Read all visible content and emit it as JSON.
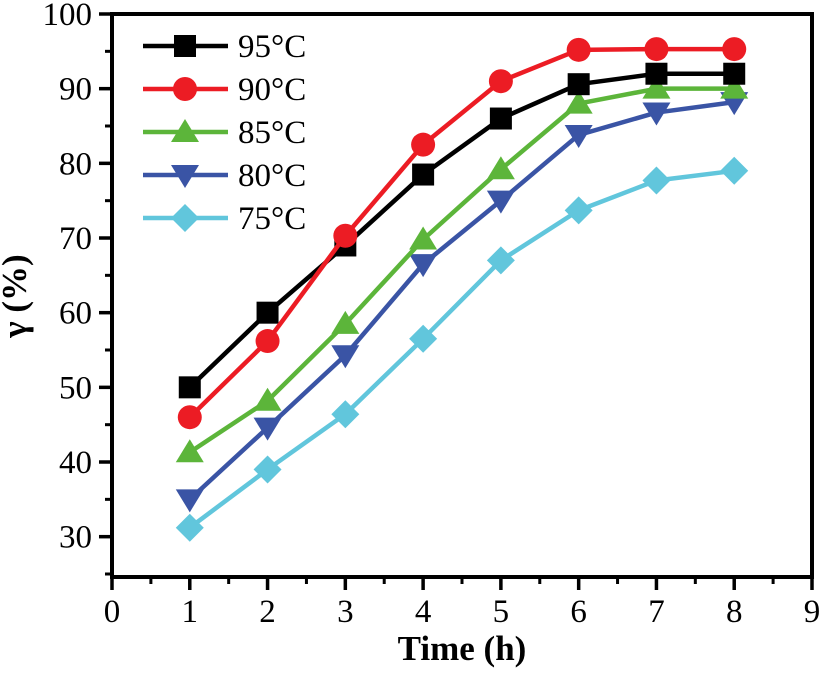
{
  "chart_data": {
    "type": "line",
    "title": "",
    "xlabel": "Time (h)",
    "ylabel": "γ (%)",
    "x": [
      1,
      2,
      3,
      4,
      5,
      6,
      7,
      8
    ],
    "xlim": [
      0,
      9
    ],
    "ylim": [
      24.6,
      100
    ],
    "x_tick_labels": [
      "0",
      "1",
      "2",
      "3",
      "4",
      "5",
      "6",
      "7",
      "8",
      "9"
    ],
    "x_tick_values": [
      0,
      1,
      2,
      3,
      4,
      5,
      6,
      7,
      8,
      9
    ],
    "x_minor_ticks": [
      0.5,
      1.5,
      2.5,
      3.5,
      4.5,
      5.5,
      6.5,
      7.5,
      8.5
    ],
    "y_tick_labels": [
      "30",
      "40",
      "50",
      "60",
      "70",
      "80",
      "90",
      "100"
    ],
    "y_tick_values": [
      30,
      40,
      50,
      60,
      70,
      80,
      90,
      100
    ],
    "y_minor_ticks": [
      25,
      35,
      45,
      55,
      65,
      75,
      85,
      95
    ],
    "grid": false,
    "legend_position": "top-left",
    "series": [
      {
        "name": "95°C",
        "color": "#000000",
        "marker": "square",
        "values": [
          50,
          60,
          69,
          78.5,
          86,
          90.6,
          92,
          92
        ]
      },
      {
        "name": "90°C",
        "color": "#EC1C24",
        "marker": "circle",
        "values": [
          46,
          56.2,
          70.3,
          82.5,
          91,
          95.2,
          95.3,
          95.3
        ]
      },
      {
        "name": "85°C",
        "color": "#5CB53A",
        "marker": "triangle-up",
        "values": [
          41.3,
          48.2,
          58.5,
          69.8,
          79.2,
          88,
          90,
          90
        ]
      },
      {
        "name": "80°C",
        "color": "#3A54A5",
        "marker": "triangle-down",
        "values": [
          35,
          44.6,
          54.3,
          66.5,
          75,
          83.8,
          86.8,
          88.2
        ]
      },
      {
        "name": "75°C",
        "color": "#61C6DC",
        "marker": "diamond",
        "values": [
          31.2,
          39,
          46.4,
          56.5,
          67,
          73.7,
          77.7,
          79
        ]
      }
    ],
    "draw_order": [
      "75°C",
      "80°C",
      "85°C",
      "95°C",
      "90°C"
    ]
  }
}
